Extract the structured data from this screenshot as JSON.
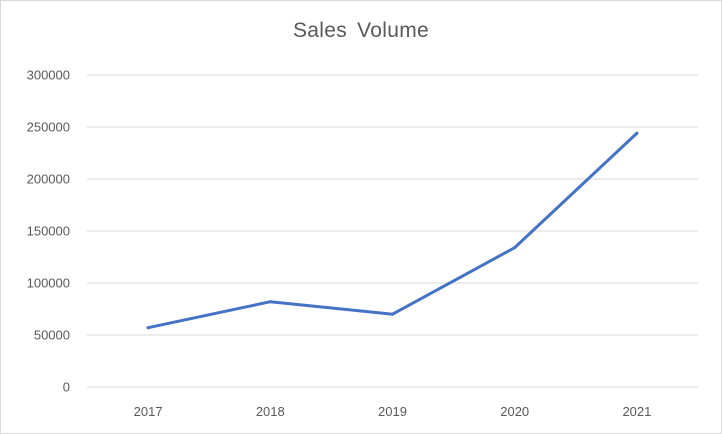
{
  "chart_data": {
    "type": "line",
    "title": "Sales  Volume",
    "xlabel": "",
    "ylabel": "",
    "categories": [
      "2017",
      "2018",
      "2019",
      "2020",
      "2021"
    ],
    "series": [
      {
        "values": [
          57000,
          82000,
          70000,
          134000,
          244000
        ],
        "color": "#4472c4"
      }
    ],
    "ylim": [
      0,
      300000
    ],
    "yticks": [
      "0",
      "50000",
      "100000",
      "150000",
      "200000",
      "250000",
      "300000"
    ],
    "grid": true,
    "legend": "none",
    "gridline_color": "#d9d9d9",
    "axis_text_color": "#595959"
  }
}
